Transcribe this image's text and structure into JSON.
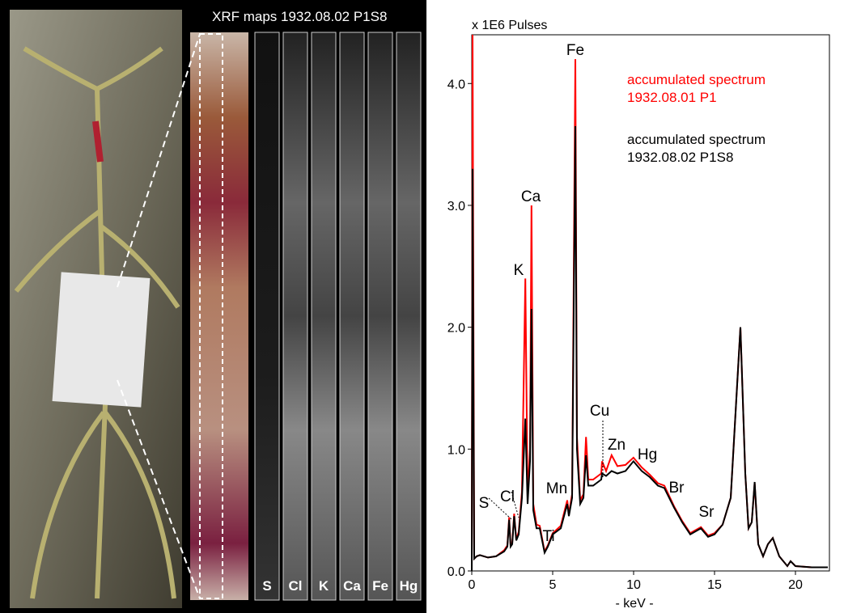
{
  "maps": {
    "title": "XRF maps 1932.08.02 P1S8",
    "labels": [
      "S",
      "Cl",
      "K",
      "Ca",
      "Fe",
      "Hg"
    ]
  },
  "chart_data": {
    "type": "line",
    "y_label": "x 1E6 Pulses",
    "x_label": "- keV -",
    "xlim": [
      0,
      22.1
    ],
    "xticks": [
      0,
      5,
      10,
      15,
      20
    ],
    "ylim": [
      0,
      4.4
    ],
    "yticks": [
      {
        "value": 0,
        "label": "0.0"
      },
      {
        "value": 1,
        "label": "1.0"
      },
      {
        "value": 2,
        "label": "2.0"
      },
      {
        "value": 3,
        "label": "3.0"
      },
      {
        "value": 4,
        "label": "4.0"
      }
    ],
    "annotations": [
      "S",
      "Cl",
      "K",
      "Ca",
      "Ti",
      "Mn",
      "Fe",
      "Cu",
      "Zn",
      "Hg",
      "Br",
      "Sr"
    ],
    "x": [
      0,
      0.05,
      0.15,
      0.3,
      0.5,
      1,
      1.5,
      2.0,
      2.2,
      2.31,
      2.4,
      2.5,
      2.62,
      2.75,
      2.9,
      3.1,
      3.31,
      3.45,
      3.6,
      3.69,
      3.8,
      4.0,
      4.2,
      4.5,
      4.7,
      5.0,
      5.5,
      5.9,
      6.0,
      6.2,
      6.4,
      6.5,
      6.7,
      6.9,
      7.06,
      7.2,
      7.5,
      8.0,
      8.05,
      8.3,
      8.64,
      9.0,
      9.5,
      9.99,
      10.5,
      11.0,
      11.5,
      11.9,
      12.5,
      13.0,
      13.5,
      14.16,
      14.6,
      15.0,
      15.5,
      16.0,
      16.3,
      16.6,
      16.9,
      17.1,
      17.3,
      17.48,
      17.7,
      18.0,
      18.3,
      18.6,
      19.0,
      19.5,
      19.7,
      20.0,
      21.0,
      22.0
    ],
    "series": [
      {
        "name": "accumulated spectrum 1932.08.01 P1",
        "color": "#ff0000",
        "values": [
          0,
          4.4,
          0.1,
          0.12,
          0.13,
          0.11,
          0.12,
          0.17,
          0.21,
          0.44,
          0.21,
          0.23,
          0.47,
          0.26,
          0.32,
          0.65,
          2.4,
          0.6,
          1.0,
          3.0,
          0.55,
          0.38,
          0.37,
          0.16,
          0.21,
          0.31,
          0.37,
          0.58,
          0.47,
          0.63,
          4.2,
          1.1,
          0.58,
          0.63,
          1.1,
          0.75,
          0.75,
          0.8,
          0.9,
          0.82,
          0.95,
          0.86,
          0.87,
          0.93,
          0.85,
          0.79,
          0.72,
          0.7,
          0.53,
          0.41,
          0.31,
          0.36,
          0.29,
          0.31,
          0.38,
          0.6,
          1.3,
          2.0,
          0.8,
          0.35,
          0.4,
          0.72,
          0.22,
          0.12,
          0.22,
          0.27,
          0.12,
          0.04,
          0.08,
          0.04,
          0.03,
          0.03
        ]
      },
      {
        "name": "accumulated spectrum 1932.08.02 P1S8",
        "color": "#000000",
        "values": [
          0,
          3.3,
          0.1,
          0.12,
          0.13,
          0.11,
          0.12,
          0.16,
          0.2,
          0.42,
          0.2,
          0.22,
          0.45,
          0.25,
          0.3,
          0.6,
          1.25,
          0.55,
          0.9,
          2.15,
          0.5,
          0.35,
          0.35,
          0.15,
          0.2,
          0.3,
          0.35,
          0.55,
          0.45,
          0.6,
          3.65,
          1.0,
          0.55,
          0.6,
          0.95,
          0.7,
          0.7,
          0.75,
          0.8,
          0.78,
          0.82,
          0.8,
          0.82,
          0.9,
          0.82,
          0.77,
          0.7,
          0.68,
          0.52,
          0.4,
          0.3,
          0.35,
          0.28,
          0.3,
          0.38,
          0.6,
          1.3,
          2.0,
          0.8,
          0.35,
          0.4,
          0.73,
          0.22,
          0.12,
          0.22,
          0.27,
          0.12,
          0.04,
          0.08,
          0.04,
          0.03,
          0.03
        ]
      }
    ]
  }
}
